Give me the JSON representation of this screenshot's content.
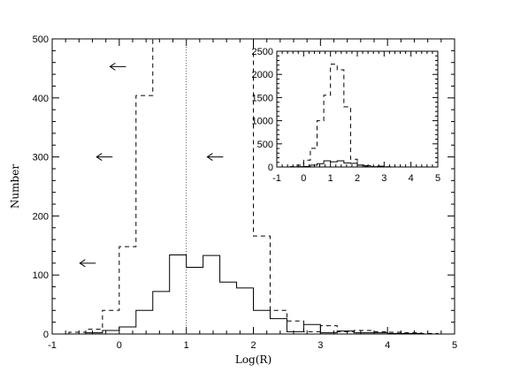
{
  "chart_data": [
    {
      "type": "line",
      "xlabel": "Log(R)",
      "ylabel": "Number",
      "xlim": [
        -1,
        5
      ],
      "ylim": [
        0,
        500
      ],
      "xticks": [
        -1,
        0,
        1,
        2,
        3,
        4,
        5
      ],
      "yticks": [
        0,
        100,
        200,
        300,
        400,
        500
      ],
      "grid": false,
      "reference_line_x": 1,
      "series": [
        {
          "style": "solid",
          "bin_edges": [
            -0.75,
            -0.5,
            -0.25,
            0,
            0.25,
            0.5,
            0.75,
            1,
            1.25,
            1.5,
            1.75,
            2,
            2.25,
            2.5,
            2.75,
            3,
            3.25,
            3.5,
            3.75,
            4,
            4.25,
            4.5,
            4.75
          ],
          "counts": [
            0,
            2,
            6,
            12,
            40,
            72,
            134,
            113,
            133,
            88,
            78,
            40,
            26,
            4,
            16,
            2,
            5,
            2,
            2,
            1,
            1,
            0
          ]
        },
        {
          "style": "dashed",
          "bin_edges": [
            -0.75,
            -0.5,
            -0.25,
            0,
            0.25,
            0.5,
            0.75,
            1,
            1.25,
            1.5,
            1.75,
            2,
            2.25,
            2.5,
            2.75,
            3,
            3.25,
            3.5,
            3.75,
            4,
            4.25,
            4.5,
            4.75
          ],
          "counts": [
            3,
            8,
            40,
            148,
            404,
            500,
            500,
            500,
            500,
            500,
            500,
            166,
            40,
            22,
            4,
            14,
            4,
            6,
            4,
            3,
            2,
            1
          ]
        }
      ],
      "annotations": [
        {
          "type": "arrow",
          "direction": "left",
          "x": 0.1,
          "y": 453
        },
        {
          "type": "arrow",
          "direction": "left",
          "x": -0.1,
          "y": 300
        },
        {
          "type": "arrow",
          "direction": "left",
          "x": 1.55,
          "y": 300
        },
        {
          "type": "arrow",
          "direction": "left",
          "x": -0.35,
          "y": 120
        }
      ]
    },
    {
      "type": "line",
      "role": "inset",
      "xlim": [
        -1,
        5
      ],
      "ylim": [
        0,
        2500
      ],
      "xticks": [
        -1,
        0,
        1,
        2,
        3,
        4,
        5
      ],
      "yticks": [
        0,
        500,
        1000,
        1500,
        2000,
        2500
      ],
      "series": [
        {
          "style": "solid",
          "bin_edges": [
            -0.5,
            -0.25,
            0,
            0.25,
            0.5,
            0.75,
            1,
            1.25,
            1.5,
            1.75,
            2,
            2.25,
            2.5,
            2.75,
            3,
            3.25
          ],
          "counts": [
            2,
            6,
            12,
            40,
            72,
            134,
            113,
            133,
            88,
            78,
            40,
            26,
            4,
            16,
            2
          ]
        },
        {
          "style": "dashed",
          "bin_edges": [
            -0.5,
            -0.25,
            0,
            0.25,
            0.5,
            0.75,
            1,
            1.25,
            1.5,
            1.75,
            2,
            2.25,
            2.5,
            2.75,
            3,
            3.25
          ],
          "counts": [
            8,
            40,
            148,
            404,
            1000,
            1550,
            2220,
            2100,
            1300,
            166,
            40,
            22,
            4,
            14,
            4
          ]
        }
      ]
    }
  ]
}
